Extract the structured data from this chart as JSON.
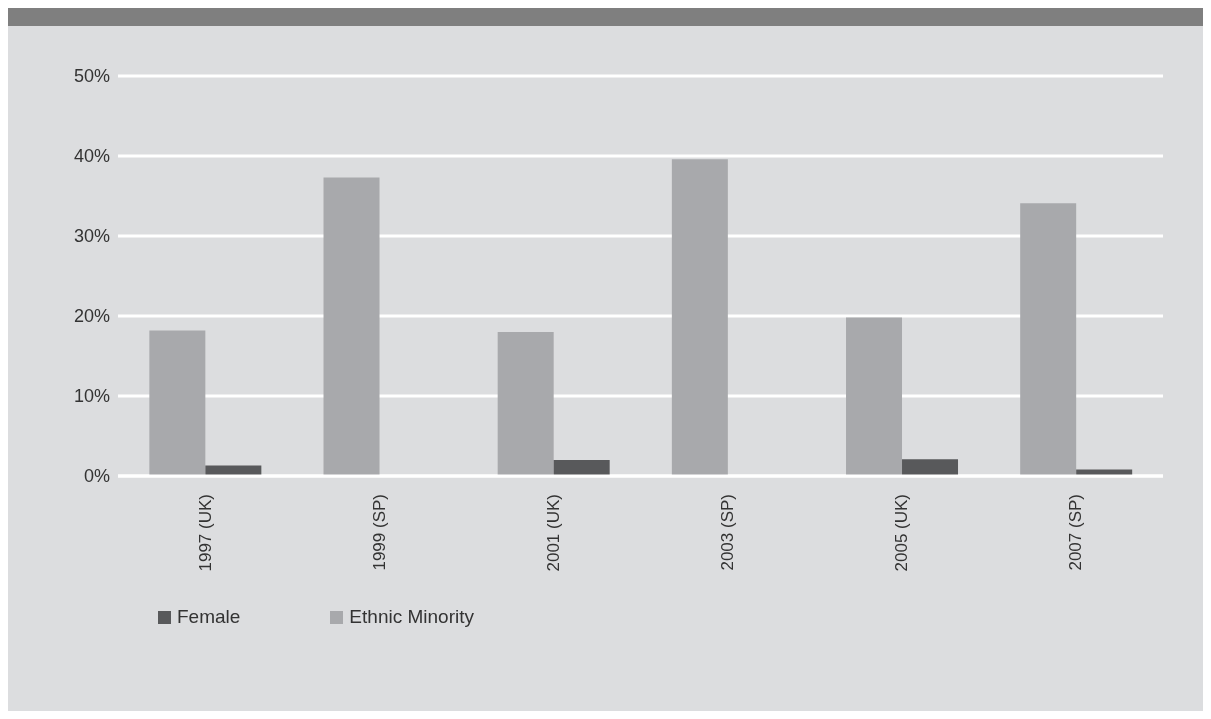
{
  "chart_data": {
    "type": "bar",
    "categories": [
      "1997 (UK)",
      "1999 (SP)",
      "2001 (UK)",
      "2003 (SP)",
      "2005 (UK)",
      "2007 (SP)"
    ],
    "series": [
      {
        "name": "Ethnic Minority",
        "color": "#a8a9ac",
        "values": [
          18.2,
          37.3,
          18.0,
          39.6,
          19.8,
          34.1
        ]
      },
      {
        "name": "Female",
        "color": "#58595b",
        "values": [
          1.3,
          null,
          2.0,
          null,
          2.1,
          0.8
        ]
      }
    ],
    "ylim": [
      0,
      50
    ],
    "yticks": [
      {
        "value": 0,
        "label": "0%"
      },
      {
        "value": 10,
        "label": "10%"
      },
      {
        "value": 20,
        "label": "20%"
      },
      {
        "value": 30,
        "label": "30%"
      },
      {
        "value": 40,
        "label": "40%"
      },
      {
        "value": 50,
        "label": "50%"
      }
    ],
    "grid": "y",
    "legend": "bottom left"
  }
}
